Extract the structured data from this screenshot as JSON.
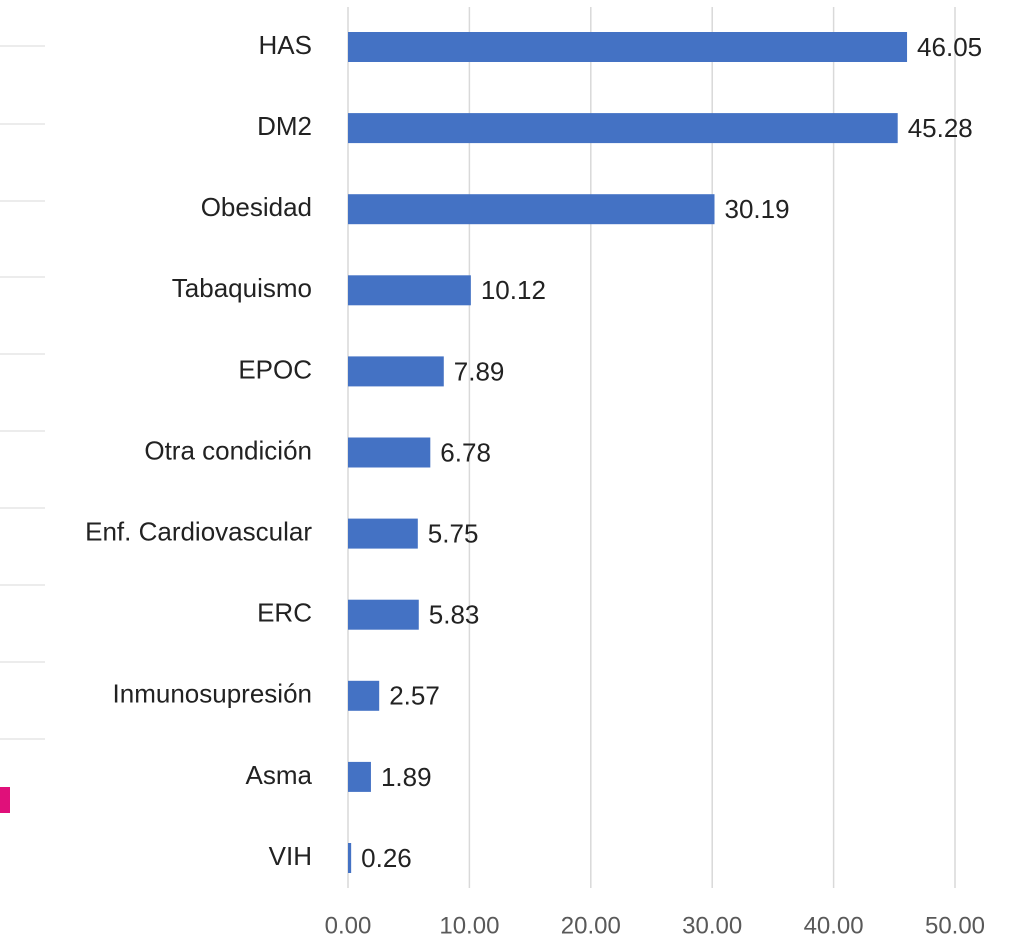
{
  "chart_data": {
    "type": "hbar",
    "categories": [
      "HAS",
      "DM2",
      "Obesidad",
      "Tabaquismo",
      "EPOC",
      "Otra condición",
      "Enf. Cardiovascular",
      "ERC",
      "Inmunosupresión",
      "Asma",
      "VIH"
    ],
    "values": [
      46.05,
      45.28,
      30.19,
      10.12,
      7.89,
      6.78,
      5.75,
      5.83,
      2.57,
      1.89,
      0.26
    ],
    "color": "#4472c4",
    "xlim": [
      0,
      50
    ],
    "xticks": [
      {
        "value": 0,
        "label": "0.00"
      },
      {
        "value": 10,
        "label": "10.00"
      },
      {
        "value": 20,
        "label": "20.00"
      },
      {
        "value": 30,
        "label": "30.00"
      },
      {
        "value": 40,
        "label": "40.00"
      },
      {
        "value": 50,
        "label": "50.00"
      }
    ],
    "grid": true
  }
}
